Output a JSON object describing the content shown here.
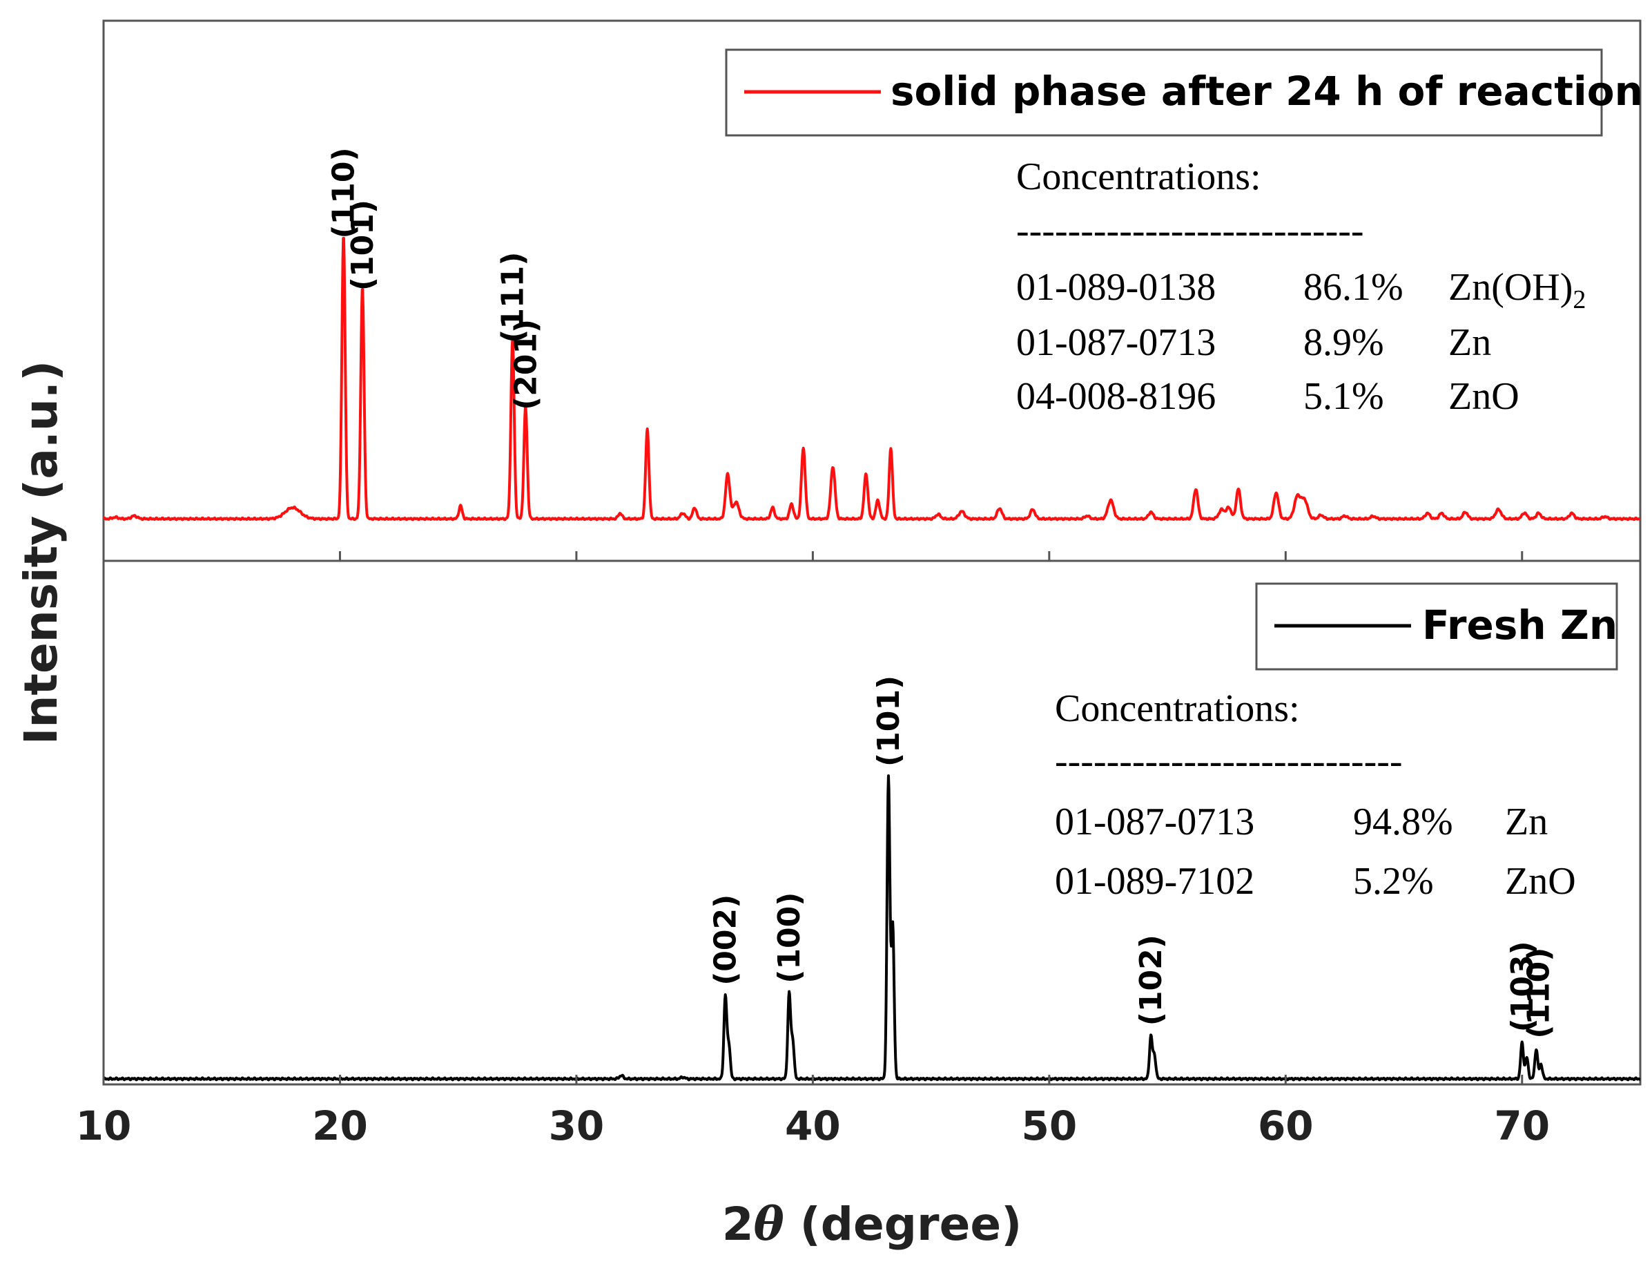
{
  "chart_data": {
    "type": "line",
    "xlabel": "2θ (degree)",
    "xlabel_prefix": "2",
    "xlabel_symbol": "θ",
    "xlabel_suffix": " (degree)",
    "ylabel": "Intensity (a.u.)",
    "xlim": [
      10,
      75
    ],
    "xticks": [
      10,
      20,
      30,
      40,
      50,
      60,
      70
    ],
    "grid": false,
    "panels": [
      {
        "name": "top",
        "legend": "solid phase after 24 h of reaction",
        "legend_position": "top-right",
        "color": "#ff1010",
        "ylim": [
          0,
          100
        ],
        "baseline": 3.5,
        "peaks": [
          {
            "x": 10.5,
            "h": 0.4,
            "w": 0.12
          },
          {
            "x": 11.3,
            "h": 0.8,
            "w": 0.12
          },
          {
            "x": 18.0,
            "h": 3.0,
            "w": 0.32
          },
          {
            "x": 20.15,
            "h": 76.0,
            "w": 0.07
          },
          {
            "x": 20.95,
            "h": 62.0,
            "w": 0.07
          },
          {
            "x": 25.1,
            "h": 3.5,
            "w": 0.07
          },
          {
            "x": 27.3,
            "h": 48.0,
            "w": 0.07
          },
          {
            "x": 27.85,
            "h": 30.0,
            "w": 0.07
          },
          {
            "x": 31.85,
            "h": 1.5,
            "w": 0.08
          },
          {
            "x": 33.0,
            "h": 24.0,
            "w": 0.07
          },
          {
            "x": 34.5,
            "h": 1.5,
            "w": 0.1
          },
          {
            "x": 35.0,
            "h": 3.0,
            "w": 0.08
          },
          {
            "x": 36.4,
            "h": 12.0,
            "w": 0.09
          },
          {
            "x": 36.75,
            "h": 4.5,
            "w": 0.12
          },
          {
            "x": 38.3,
            "h": 3.0,
            "w": 0.08
          },
          {
            "x": 39.1,
            "h": 4.0,
            "w": 0.08
          },
          {
            "x": 39.6,
            "h": 19.0,
            "w": 0.08
          },
          {
            "x": 40.85,
            "h": 14.0,
            "w": 0.09
          },
          {
            "x": 42.25,
            "h": 12.0,
            "w": 0.08
          },
          {
            "x": 42.75,
            "h": 5.0,
            "w": 0.08
          },
          {
            "x": 43.3,
            "h": 19.0,
            "w": 0.07
          },
          {
            "x": 45.3,
            "h": 1.2,
            "w": 0.1
          },
          {
            "x": 46.3,
            "h": 2.0,
            "w": 0.12
          },
          {
            "x": 47.9,
            "h": 2.8,
            "w": 0.1
          },
          {
            "x": 49.3,
            "h": 2.5,
            "w": 0.1
          },
          {
            "x": 51.6,
            "h": 0.8,
            "w": 0.1
          },
          {
            "x": 52.6,
            "h": 5.0,
            "w": 0.12
          },
          {
            "x": 54.3,
            "h": 1.8,
            "w": 0.1
          },
          {
            "x": 56.2,
            "h": 8.0,
            "w": 0.09
          },
          {
            "x": 57.3,
            "h": 2.5,
            "w": 0.12
          },
          {
            "x": 57.6,
            "h": 3.0,
            "w": 0.1
          },
          {
            "x": 58.0,
            "h": 8.0,
            "w": 0.09
          },
          {
            "x": 59.6,
            "h": 7.0,
            "w": 0.1
          },
          {
            "x": 60.5,
            "h": 6.0,
            "w": 0.13
          },
          {
            "x": 60.8,
            "h": 5.0,
            "w": 0.13
          },
          {
            "x": 61.5,
            "h": 1.0,
            "w": 0.1
          },
          {
            "x": 62.5,
            "h": 0.8,
            "w": 0.1
          },
          {
            "x": 63.7,
            "h": 0.7,
            "w": 0.1
          },
          {
            "x": 66.0,
            "h": 1.5,
            "w": 0.1
          },
          {
            "x": 66.6,
            "h": 1.5,
            "w": 0.1
          },
          {
            "x": 67.6,
            "h": 1.8,
            "w": 0.1
          },
          {
            "x": 69.0,
            "h": 2.5,
            "w": 0.12
          },
          {
            "x": 70.1,
            "h": 1.6,
            "w": 0.1
          },
          {
            "x": 70.7,
            "h": 1.5,
            "w": 0.1
          },
          {
            "x": 72.1,
            "h": 1.5,
            "w": 0.1
          },
          {
            "x": 73.5,
            "h": 0.6,
            "w": 0.1
          }
        ],
        "peak_labels": [
          {
            "text": "(110)",
            "x": 20.15,
            "y": 77.5
          },
          {
            "text": "(101)",
            "x": 20.95,
            "y": 63.5
          },
          {
            "text": "(111)",
            "x": 27.3,
            "y": 49.5
          },
          {
            "text": "(201)",
            "x": 27.85,
            "y": 31.5
          }
        ],
        "concentrations": {
          "title": "Concentrations:",
          "separator": "---------------------------",
          "rows": [
            {
              "code": "01-089-0138",
              "pct": "86.1%",
              "phase": "Zn(OH)",
              "sub": "2"
            },
            {
              "code": "01-087-0713",
              "pct": "8.9%",
              "phase": "Zn",
              "sub": ""
            },
            {
              "code": "04-008-8196",
              "pct": "5.1%",
              "phase": "ZnO",
              "sub": ""
            }
          ]
        }
      },
      {
        "name": "bottom",
        "legend": "Fresh Zn",
        "legend_position": "top-right",
        "color": "#000000",
        "ylim": [
          0,
          100
        ],
        "baseline": 0.5,
        "peaks": [
          {
            "x": 31.9,
            "h": 0.8,
            "w": 0.08
          },
          {
            "x": 34.5,
            "h": 0.4,
            "w": 0.08
          },
          {
            "x": 36.3,
            "h": 19.5,
            "w": 0.06
          },
          {
            "x": 36.45,
            "h": 8.0,
            "w": 0.06
          },
          {
            "x": 39.0,
            "h": 20.0,
            "w": 0.06
          },
          {
            "x": 39.15,
            "h": 9.0,
            "w": 0.06
          },
          {
            "x": 43.2,
            "h": 71.0,
            "w": 0.06
          },
          {
            "x": 43.38,
            "h": 36.0,
            "w": 0.06
          },
          {
            "x": 54.3,
            "h": 10.0,
            "w": 0.06
          },
          {
            "x": 54.45,
            "h": 5.5,
            "w": 0.06
          },
          {
            "x": 70.0,
            "h": 8.5,
            "w": 0.06
          },
          {
            "x": 70.2,
            "h": 5.0,
            "w": 0.06
          },
          {
            "x": 70.6,
            "h": 7.0,
            "w": 0.06
          },
          {
            "x": 70.8,
            "h": 3.5,
            "w": 0.06
          }
        ],
        "peak_labels": [
          {
            "text": "(002)",
            "x": 36.3,
            "y": 21.5
          },
          {
            "text": "(100)",
            "x": 39.0,
            "y": 22.0
          },
          {
            "text": "(101)",
            "x": 43.2,
            "y": 73.0
          },
          {
            "text": "(102)",
            "x": 54.3,
            "y": 12.0
          },
          {
            "text": "(103)",
            "x": 70.0,
            "y": 10.5
          },
          {
            "text": "(110)",
            "x": 70.7,
            "y": 9.0
          }
        ],
        "concentrations": {
          "title": "Concentrations:",
          "separator": "---------------------------",
          "rows": [
            {
              "code": "01-087-0713",
              "pct": "94.8%",
              "phase": "Zn",
              "sub": ""
            },
            {
              "code": "01-089-7102",
              "pct": "5.2%",
              "phase": "ZnO",
              "sub": ""
            }
          ]
        }
      }
    ]
  }
}
